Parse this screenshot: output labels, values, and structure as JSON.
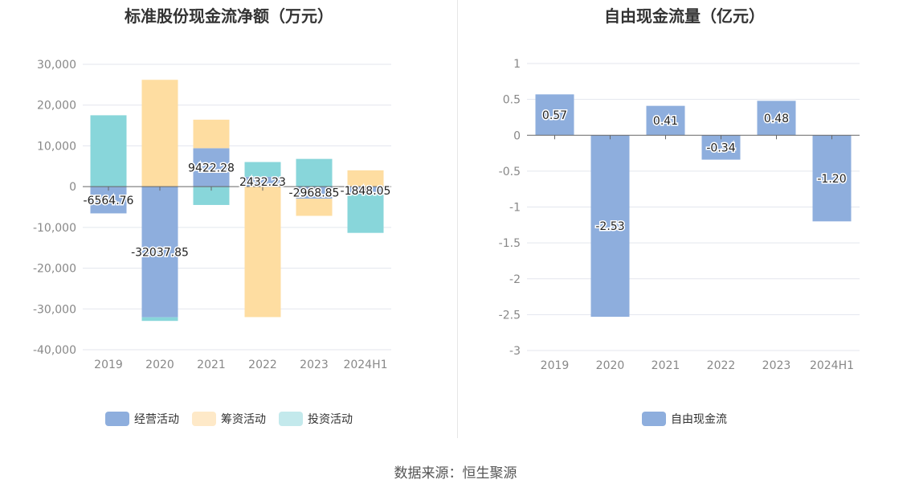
{
  "left": {
    "title": "标准股份现金流净额（万元）",
    "legend": [
      {
        "label": "经营活动",
        "color": "#8eaedd"
      },
      {
        "label": "筹资活动",
        "color": "#fedda1"
      },
      {
        "label": "投资活动",
        "color": "#c3e9ec"
      }
    ]
  },
  "right": {
    "title": "自由现金流量（亿元）",
    "legend": [
      {
        "label": "自由现金流",
        "color": "#8eaedd"
      }
    ]
  },
  "source": "数据来源：恒生聚源",
  "chart_data": [
    {
      "type": "bar",
      "stacked": true,
      "title": "标准股份现金流净额（万元）",
      "categories": [
        "2019",
        "2020",
        "2021",
        "2022",
        "2023",
        "2024H1"
      ],
      "ylim": [
        -40000,
        30000
      ],
      "yticks": [
        30000,
        20000,
        10000,
        0,
        -10000,
        -20000,
        -30000,
        -40000
      ],
      "ytick_labels": [
        "30,000",
        "20,000",
        "10,000",
        "0",
        "-10,000",
        "-20,000",
        "-30,000",
        "-40,000"
      ],
      "series": [
        {
          "name": "经营活动",
          "color": "#8eaedd",
          "values": [
            -6564.76,
            -32037.85,
            9422.28,
            2432.23,
            -2968.85,
            -1848.05
          ],
          "labels": [
            "-6564.76",
            "-32037.85",
            "9422.28",
            "2432.23",
            "-2968.85",
            "-1848.05"
          ]
        },
        {
          "name": "筹资活动",
          "color": "#fedda1",
          "values": [
            0,
            26200,
            7000,
            -32000,
            -4200,
            4000
          ]
        },
        {
          "name": "投资活动",
          "color": "#88d6da",
          "values": [
            17500,
            -900,
            -4500,
            3600,
            6800,
            -9500
          ]
        }
      ],
      "grid": true
    },
    {
      "type": "bar",
      "title": "自由现金流量（亿元）",
      "categories": [
        "2019",
        "2020",
        "2021",
        "2022",
        "2023",
        "2024H1"
      ],
      "ylim": [
        -3,
        1
      ],
      "yticks": [
        1,
        0.5,
        0,
        -0.5,
        -1,
        -1.5,
        -2,
        -2.5,
        -3
      ],
      "ytick_labels": [
        "1",
        "0.5",
        "0",
        "-0.5",
        "-1",
        "-1.5",
        "-2",
        "-2.5",
        "-3"
      ],
      "series": [
        {
          "name": "自由现金流",
          "color": "#8eaedd",
          "values": [
            0.57,
            -2.53,
            0.41,
            -0.34,
            0.48,
            -1.2
          ],
          "labels": [
            "0.57",
            "-2.53",
            "0.41",
            "-0.34",
            "0.48",
            "-1.20"
          ]
        }
      ],
      "grid": true
    }
  ]
}
